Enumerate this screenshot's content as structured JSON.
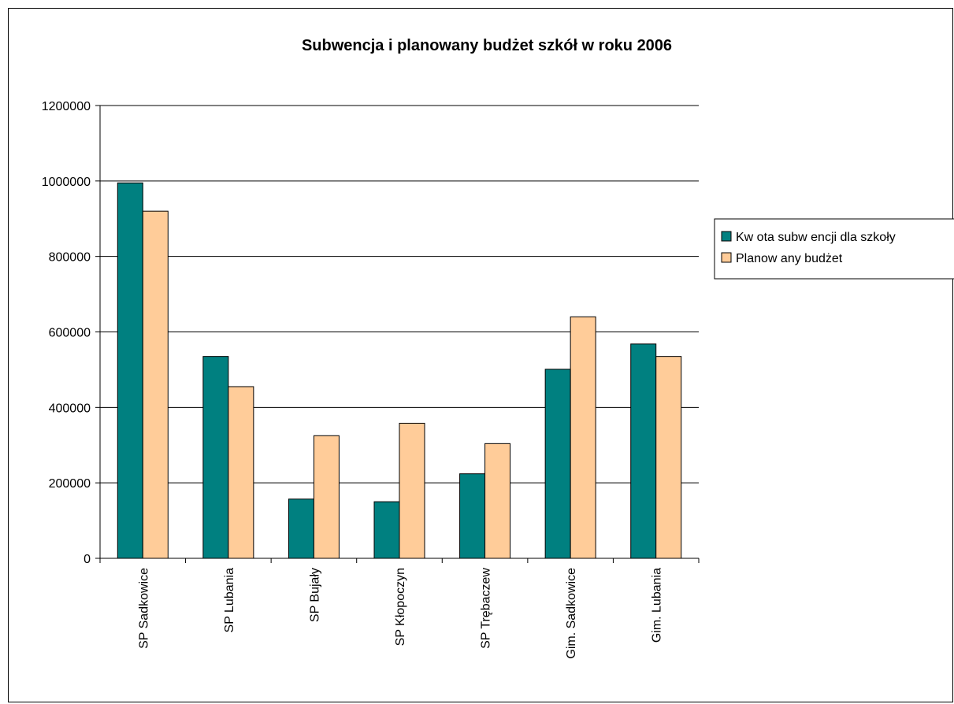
{
  "chart_data": {
    "type": "bar",
    "title": "Subwencja i planowany budżet szkół w roku 2006",
    "xlabel": "",
    "ylabel": "",
    "ylim": [
      0,
      1200000
    ],
    "yticks": [
      0,
      200000,
      400000,
      600000,
      800000,
      1000000,
      1200000
    ],
    "grid": true,
    "legend_position": "right",
    "categories": [
      "SP Sadkowice",
      "SP Lubania",
      "SP Bujały",
      "SP Kłopoczyn",
      "SP Trębaczew",
      "Gim. Sadkowice",
      "Gim. Lubania"
    ],
    "series": [
      {
        "name": "Kw ota subw encji dla szkoły",
        "color": "#008080",
        "values": [
          995000,
          535000,
          157000,
          150000,
          224000,
          501000,
          568000
        ]
      },
      {
        "name": "Planow any budżet",
        "color": "#FFCC99",
        "values": [
          920000,
          455000,
          325000,
          358000,
          304000,
          640000,
          535000
        ]
      }
    ]
  }
}
